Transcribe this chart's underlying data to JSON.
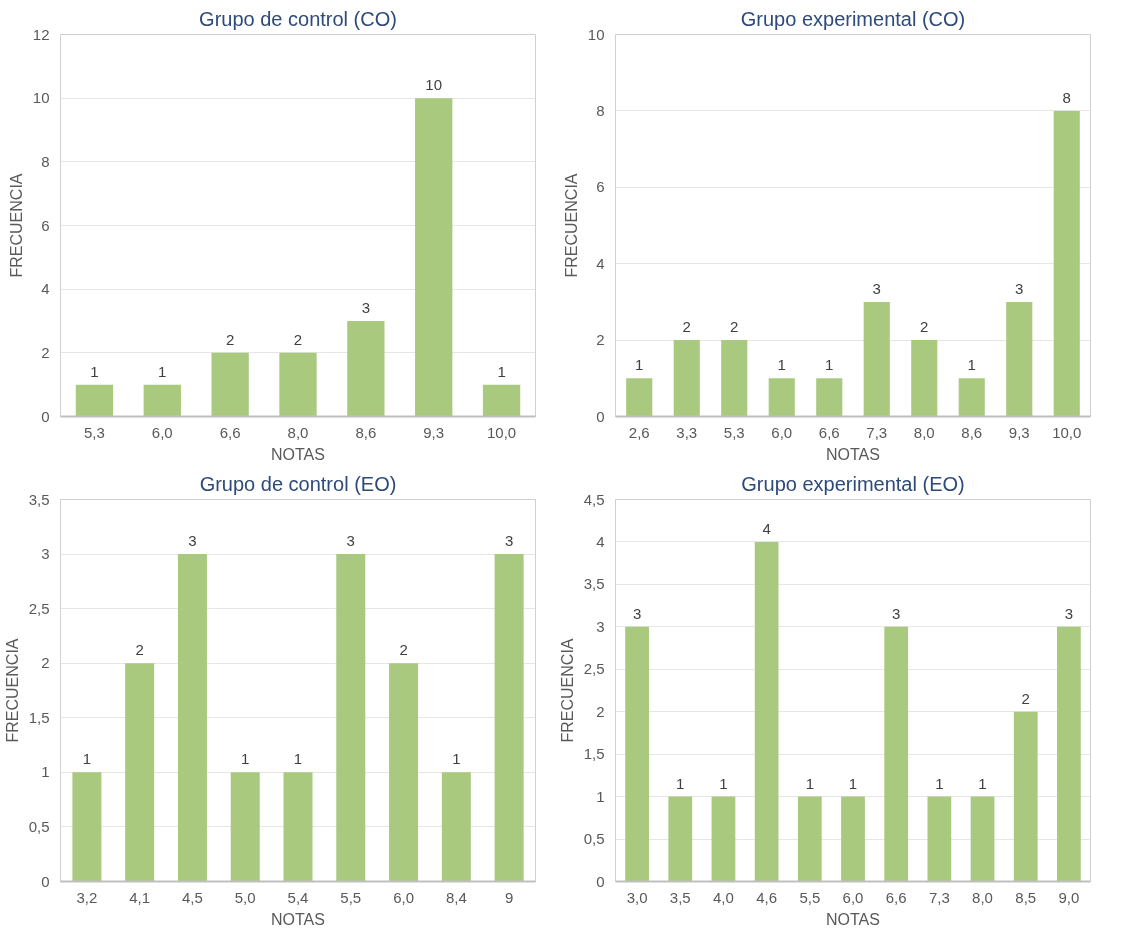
{
  "chart_data": [
    {
      "type": "bar",
      "title": "Grupo de control (CO)",
      "xlabel": "NOTAS",
      "ylabel": "FRECUENCIA",
      "categories": [
        "5,3",
        "6,0",
        "6,6",
        "8,0",
        "8,6",
        "9,3",
        "10,0"
      ],
      "values": [
        1,
        1,
        2,
        2,
        3,
        10,
        1
      ],
      "color": "#a9c97f",
      "ylim": [
        0,
        12
      ],
      "yticks": [
        0,
        2,
        4,
        6,
        8,
        10,
        12
      ],
      "grid": "y",
      "data_labels": true
    },
    {
      "type": "bar",
      "title": "Grupo experimental (CO)",
      "xlabel": "NOTAS",
      "ylabel": "FRECUENCIA",
      "categories": [
        "2,6",
        "3,3",
        "5,3",
        "6,0",
        "6,6",
        "7,3",
        "8,0",
        "8,6",
        "9,3",
        "10,0"
      ],
      "values": [
        1,
        2,
        2,
        1,
        1,
        3,
        2,
        1,
        3,
        8
      ],
      "color": "#a9c97f",
      "ylim": [
        0,
        10
      ],
      "yticks": [
        0,
        2,
        4,
        6,
        8,
        10
      ],
      "grid": "y",
      "data_labels": true
    },
    {
      "type": "bar",
      "title": "Grupo de control (EO)",
      "xlabel": "NOTAS",
      "ylabel": "FRECUENCIA",
      "categories": [
        "3,2",
        "4,1",
        "4,5",
        "5,0",
        "5,4",
        "5,5",
        "6,0",
        "8,4",
        "9"
      ],
      "values": [
        1,
        2,
        3,
        1,
        1,
        3,
        2,
        1,
        3
      ],
      "color": "#a9c97f",
      "ylim": [
        0,
        3.5
      ],
      "yticks": [
        0,
        {
          "value": 0.5,
          "label": "0,5"
        },
        1,
        {
          "value": 1.5,
          "label": "1,5"
        },
        2,
        {
          "value": 2.5,
          "label": "2,5"
        },
        3,
        {
          "value": 3.5,
          "label": "3,5"
        }
      ],
      "grid": "y",
      "data_labels": true
    },
    {
      "type": "bar",
      "title": "Grupo experimental (EO)",
      "xlabel": "NOTAS",
      "ylabel": "FRECUENCIA",
      "categories": [
        "3,0",
        "3,5",
        "4,0",
        "4,6",
        "5,5",
        "6,0",
        "6,6",
        "7,3",
        "8,0",
        "8,5",
        "9,0"
      ],
      "values": [
        3,
        1,
        1,
        4,
        1,
        1,
        3,
        1,
        1,
        2,
        3
      ],
      "color": "#a9c97f",
      "ylim": [
        0,
        4.5
      ],
      "yticks": [
        0,
        {
          "value": 0.5,
          "label": "0,5"
        },
        1,
        {
          "value": 1.5,
          "label": "1,5"
        },
        2,
        {
          "value": 2.5,
          "label": "2,5"
        },
        3,
        {
          "value": 3.5,
          "label": "3,5"
        },
        4,
        {
          "value": 4.5,
          "label": "4,5"
        }
      ],
      "grid": "y",
      "data_labels": true
    }
  ]
}
